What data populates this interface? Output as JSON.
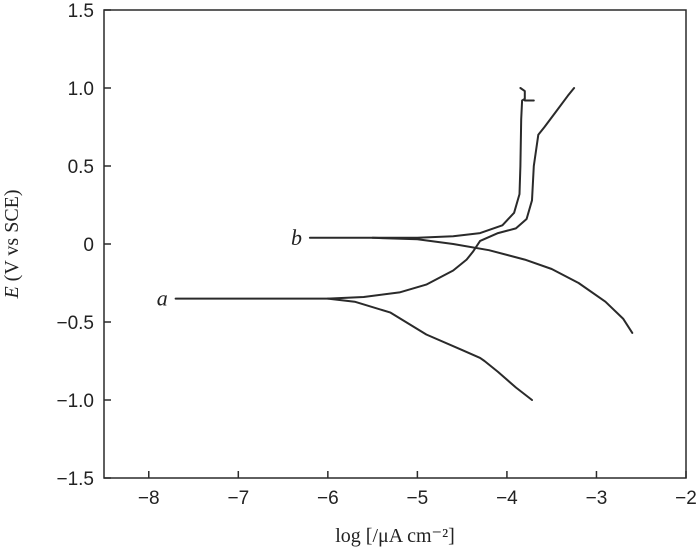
{
  "chart_data": {
    "type": "line",
    "xlabel": "log [/μA cm⁻²]",
    "ylabel_italic": "E",
    "ylabel_rest": " (V vs SCE)",
    "xlim": [
      -8.5,
      -2
    ],
    "ylim": [
      -1.5,
      1.5
    ],
    "xticks": [
      -8,
      -7,
      -6,
      -5,
      -4,
      -3,
      -2
    ],
    "xtick_labels": [
      "−8",
      "−7",
      "−6",
      "−5",
      "−4",
      "−3",
      "−2"
    ],
    "yticks": [
      -1.5,
      -1.0,
      -0.5,
      0,
      0.5,
      1.0,
      1.5
    ],
    "ytick_labels": [
      "−1.5",
      "−1.0",
      "−0.5",
      "0",
      "0.5",
      "1.0",
      "1.5"
    ],
    "grid": false,
    "legend": "none",
    "series": [
      {
        "label": "a",
        "label_at": [
          -7.85,
          -0.35
        ],
        "anodic": [
          [
            -7.7,
            -0.35
          ],
          [
            -6.5,
            -0.35
          ],
          [
            -6.0,
            -0.35
          ],
          [
            -5.6,
            -0.34
          ],
          [
            -5.2,
            -0.31
          ],
          [
            -4.9,
            -0.26
          ],
          [
            -4.6,
            -0.17
          ],
          [
            -4.45,
            -0.1
          ],
          [
            -4.38,
            -0.05
          ],
          [
            -4.3,
            0.02
          ],
          [
            -4.1,
            0.07
          ],
          [
            -3.9,
            0.1
          ],
          [
            -3.78,
            0.16
          ],
          [
            -3.72,
            0.28
          ],
          [
            -3.7,
            0.5
          ],
          [
            -3.65,
            0.7
          ],
          [
            -3.58,
            0.75
          ],
          [
            -3.45,
            0.85
          ],
          [
            -3.32,
            0.95
          ],
          [
            -3.25,
            1.0
          ]
        ],
        "cathodic": [
          [
            -6.0,
            -0.35
          ],
          [
            -5.7,
            -0.37
          ],
          [
            -5.3,
            -0.44
          ],
          [
            -4.9,
            -0.58
          ],
          [
            -4.5,
            -0.68
          ],
          [
            -4.3,
            -0.73
          ],
          [
            -4.25,
            -0.75
          ],
          [
            -4.1,
            -0.82
          ],
          [
            -3.9,
            -0.92
          ],
          [
            -3.72,
            -1.0
          ]
        ]
      },
      {
        "label": "b",
        "label_at": [
          -6.35,
          0.04
        ],
        "anodic": [
          [
            -6.2,
            0.04
          ],
          [
            -5.5,
            0.04
          ],
          [
            -5.0,
            0.04
          ],
          [
            -4.6,
            0.05
          ],
          [
            -4.3,
            0.07
          ],
          [
            -4.05,
            0.12
          ],
          [
            -3.92,
            0.2
          ],
          [
            -3.86,
            0.32
          ],
          [
            -3.85,
            0.5
          ],
          [
            -3.84,
            0.8
          ],
          [
            -3.83,
            0.92
          ],
          [
            -3.8,
            0.93
          ],
          [
            -3.8,
            0.98
          ],
          [
            -3.85,
            1.0
          ]
        ],
        "anodic_tail": [
          [
            -3.8,
            0.92
          ],
          [
            -3.7,
            0.92
          ]
        ],
        "cathodic": [
          [
            -5.5,
            0.04
          ],
          [
            -5.0,
            0.03
          ],
          [
            -4.6,
            0.0
          ],
          [
            -4.2,
            -0.04
          ],
          [
            -3.8,
            -0.1
          ],
          [
            -3.5,
            -0.16
          ],
          [
            -3.2,
            -0.25
          ],
          [
            -2.9,
            -0.37
          ],
          [
            -2.7,
            -0.48
          ],
          [
            -2.6,
            -0.57
          ]
        ]
      }
    ]
  }
}
